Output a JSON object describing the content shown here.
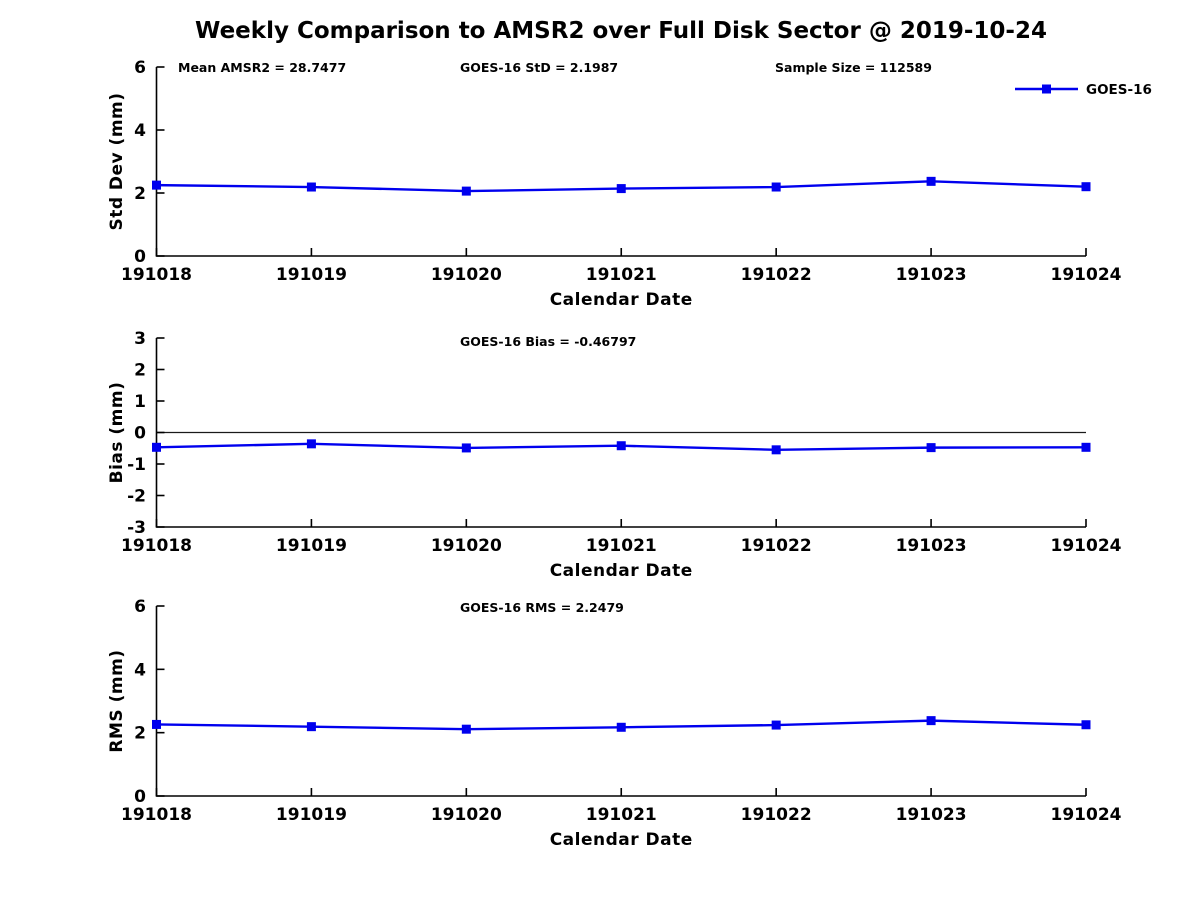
{
  "title": "Weekly Comparison to AMSR2 over Full Disk Sector @ 2019-10-24",
  "legend": {
    "label": "GOES-16"
  },
  "colors": {
    "line": "#0000EE",
    "axis": "#000000",
    "zero_line": "#1a1a1a"
  },
  "chart_data": [
    {
      "type": "line",
      "ylabel": "Std Dev (mm)",
      "xlabel": "Calendar Date",
      "categories": [
        "191018",
        "191019",
        "191020",
        "191021",
        "191022",
        "191023",
        "191024"
      ],
      "series": [
        {
          "name": "GOES-16",
          "values": [
            2.25,
            2.19,
            2.06,
            2.14,
            2.19,
            2.37,
            2.2
          ]
        }
      ],
      "ylim": [
        0,
        6
      ],
      "yticks": [
        0,
        2,
        4,
        6
      ],
      "annotations": [
        "Mean AMSR2 = 28.7477",
        "GOES-16 StD = 2.1987",
        "Sample Size = 112589"
      ],
      "legend_label": "GOES-16",
      "grid": false,
      "legend_position": "top-right"
    },
    {
      "type": "line",
      "ylabel": "Bias (mm)",
      "xlabel": "Calendar Date",
      "categories": [
        "191018",
        "191019",
        "191020",
        "191021",
        "191022",
        "191023",
        "191024"
      ],
      "series": [
        {
          "name": "GOES-16",
          "values": [
            -0.47,
            -0.36,
            -0.49,
            -0.42,
            -0.55,
            -0.48,
            -0.47
          ]
        }
      ],
      "ylim": [
        -3,
        3
      ],
      "yticks": [
        -3,
        -2,
        -1,
        0,
        1,
        2,
        3
      ],
      "annotations": [
        "GOES-16 Bias  = -0.46797"
      ],
      "zero_line": true,
      "grid": false
    },
    {
      "type": "line",
      "ylabel": "RMS (mm)",
      "xlabel": "Calendar Date",
      "categories": [
        "191018",
        "191019",
        "191020",
        "191021",
        "191022",
        "191023",
        "191024"
      ],
      "series": [
        {
          "name": "GOES-16",
          "values": [
            2.26,
            2.19,
            2.11,
            2.17,
            2.24,
            2.38,
            2.25
          ]
        }
      ],
      "ylim": [
        0,
        6
      ],
      "yticks": [
        0,
        2,
        4,
        6
      ],
      "annotations": [
        "GOES-16 RMS = 2.2479"
      ],
      "grid": false
    }
  ]
}
